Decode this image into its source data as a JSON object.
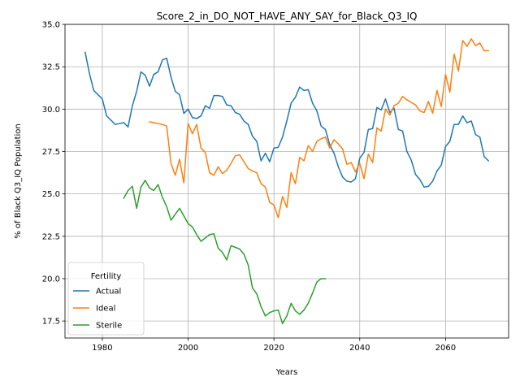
{
  "chart_data": {
    "type": "line",
    "title": "Score_2_in_DO_NOT_HAVE_ANY_SAY_for_Black_Q3_IQ",
    "xlabel": "Years",
    "ylabel": "% of Black Q3_IQ Population",
    "xlim": [
      1971.3,
      2074.7
    ],
    "ylim": [
      16.5,
      35.0
    ],
    "xticks": [
      1980,
      2000,
      2020,
      2040,
      2060
    ],
    "yticks": [
      17.5,
      20.0,
      22.5,
      25.0,
      27.5,
      30.0,
      32.5,
      35.0
    ],
    "xtick_labels": [
      "1980",
      "2000",
      "2020",
      "2040",
      "2060"
    ],
    "ytick_labels": [
      "17.5",
      "20.0",
      "22.5",
      "25.0",
      "27.5",
      "30.0",
      "32.5",
      "35.0"
    ],
    "grid": true,
    "legend": {
      "title": "Fertility",
      "placement": "lower-left"
    },
    "series": [
      {
        "name": "Actual",
        "color": "#1f77b4",
        "x": [
          1976,
          1977,
          1978,
          1979,
          1980,
          1981,
          1982,
          1983,
          1984,
          1985,
          1986,
          1987,
          1988,
          1989,
          1990,
          1991,
          1992,
          1993,
          1994,
          1995,
          1996,
          1997,
          1998,
          1999,
          2000,
          2001,
          2002,
          2003,
          2004,
          2005,
          2006,
          2007,
          2008,
          2009,
          2010,
          2011,
          2012,
          2013,
          2014,
          2015,
          2016,
          2017,
          2018,
          2019,
          2020,
          2021,
          2022,
          2023,
          2024,
          2025,
          2026,
          2027,
          2028,
          2029,
          2030,
          2031,
          2032,
          2033,
          2034,
          2035,
          2036,
          2037,
          2038,
          2039,
          2040,
          2041,
          2042,
          2043,
          2044,
          2045,
          2046,
          2047,
          2048,
          2049,
          2050,
          2051,
          2052,
          2053,
          2054,
          2055,
          2056,
          2057,
          2058,
          2059,
          2060,
          2061,
          2062,
          2063,
          2064,
          2065,
          2066,
          2067,
          2068,
          2069,
          2070
        ],
        "values": [
          33.35,
          32.1,
          31.1,
          30.85,
          30.6,
          29.6,
          29.35,
          29.1,
          29.15,
          29.2,
          28.95,
          30.2,
          31.05,
          32.2,
          32.0,
          31.35,
          32.05,
          32.2,
          32.9,
          33.0,
          31.9,
          31.05,
          30.85,
          29.75,
          30.0,
          29.5,
          29.45,
          29.6,
          30.2,
          30.05,
          30.8,
          30.8,
          30.75,
          30.25,
          30.2,
          29.8,
          29.7,
          29.3,
          29.1,
          28.4,
          28.1,
          26.95,
          27.4,
          26.9,
          27.7,
          27.75,
          28.35,
          29.3,
          30.35,
          30.7,
          31.3,
          31.1,
          31.15,
          30.35,
          29.9,
          29.0,
          28.8,
          27.9,
          27.4,
          26.6,
          26.0,
          25.75,
          25.7,
          25.9,
          27.1,
          27.45,
          28.8,
          28.85,
          30.1,
          29.95,
          30.6,
          29.8,
          30.05,
          28.8,
          28.7,
          27.5,
          27.0,
          26.15,
          25.85,
          25.4,
          25.45,
          25.75,
          26.35,
          26.7,
          27.8,
          28.1,
          29.1,
          29.1,
          29.6,
          29.2,
          29.3,
          28.5,
          28.35,
          27.2,
          26.95
        ]
      },
      {
        "name": "Ideal",
        "color": "#ff7f0e",
        "x": [
          1991,
          1992,
          1993,
          1994,
          1995,
          1996,
          1997,
          1998,
          1999,
          2000,
          2001,
          2002,
          2003,
          2004,
          2005,
          2006,
          2007,
          2008,
          2009,
          2010,
          2011,
          2012,
          2013,
          2014,
          2015,
          2016,
          2017,
          2018,
          2019,
          2020,
          2021,
          2022,
          2023,
          2024,
          2025,
          2026,
          2027,
          2028,
          2029,
          2030,
          2031,
          2032,
          2033,
          2034,
          2035,
          2036,
          2037,
          2038,
          2039,
          2040,
          2041,
          2042,
          2043,
          2044,
          2045,
          2046,
          2047,
          2048,
          2049,
          2050,
          2051,
          2052,
          2053,
          2054,
          2055,
          2056,
          2057,
          2058,
          2059,
          2060,
          2061,
          2062,
          2063,
          2064,
          2065,
          2066,
          2067,
          2068,
          2069,
          2070
        ],
        "values": [
          29.25,
          29.2,
          29.15,
          29.1,
          29.0,
          26.8,
          26.1,
          27.05,
          25.65,
          29.15,
          28.55,
          29.1,
          27.7,
          27.45,
          26.25,
          26.1,
          26.6,
          26.2,
          26.4,
          26.8,
          27.25,
          27.3,
          26.9,
          26.5,
          26.35,
          26.25,
          25.6,
          25.4,
          24.5,
          24.35,
          23.6,
          24.85,
          24.2,
          26.25,
          25.6,
          27.15,
          26.95,
          27.85,
          27.5,
          28.1,
          28.25,
          28.35,
          27.7,
          28.2,
          27.95,
          27.65,
          26.75,
          26.85,
          26.3,
          26.8,
          25.9,
          27.35,
          26.85,
          28.9,
          28.7,
          30.0,
          29.65,
          30.2,
          30.35,
          30.75,
          30.55,
          30.4,
          30.25,
          29.9,
          29.8,
          30.45,
          29.75,
          31.1,
          30.15,
          32.05,
          31.0,
          33.25,
          32.25,
          34.05,
          33.7,
          34.15,
          33.75,
          33.9,
          33.45,
          33.45
        ]
      },
      {
        "name": "Sterile",
        "color": "#2ca02c",
        "x": [
          1985,
          1986,
          1987,
          1988,
          1989,
          1990,
          1991,
          1992,
          1993,
          1994,
          1995,
          1996,
          1997,
          1998,
          1999,
          2000,
          2001,
          2002,
          2003,
          2004,
          2005,
          2006,
          2007,
          2008,
          2009,
          2010,
          2011,
          2012,
          2013,
          2014,
          2015,
          2016,
          2017,
          2018,
          2019,
          2020,
          2021,
          2022,
          2023,
          2024,
          2025,
          2026,
          2027,
          2028,
          2029,
          2030,
          2031,
          2032
        ],
        "values": [
          24.75,
          25.2,
          25.45,
          24.15,
          25.4,
          25.8,
          25.35,
          25.2,
          25.55,
          24.8,
          24.25,
          23.45,
          23.8,
          24.15,
          23.7,
          23.25,
          23.05,
          22.6,
          22.2,
          22.4,
          22.6,
          22.65,
          21.8,
          21.55,
          21.1,
          21.95,
          21.85,
          21.75,
          21.45,
          20.8,
          19.45,
          19.1,
          18.35,
          17.8,
          18.0,
          18.1,
          18.15,
          17.35,
          17.8,
          18.55,
          18.1,
          17.9,
          18.15,
          18.55,
          19.15,
          19.8,
          20.0,
          20.0
        ]
      }
    ]
  }
}
